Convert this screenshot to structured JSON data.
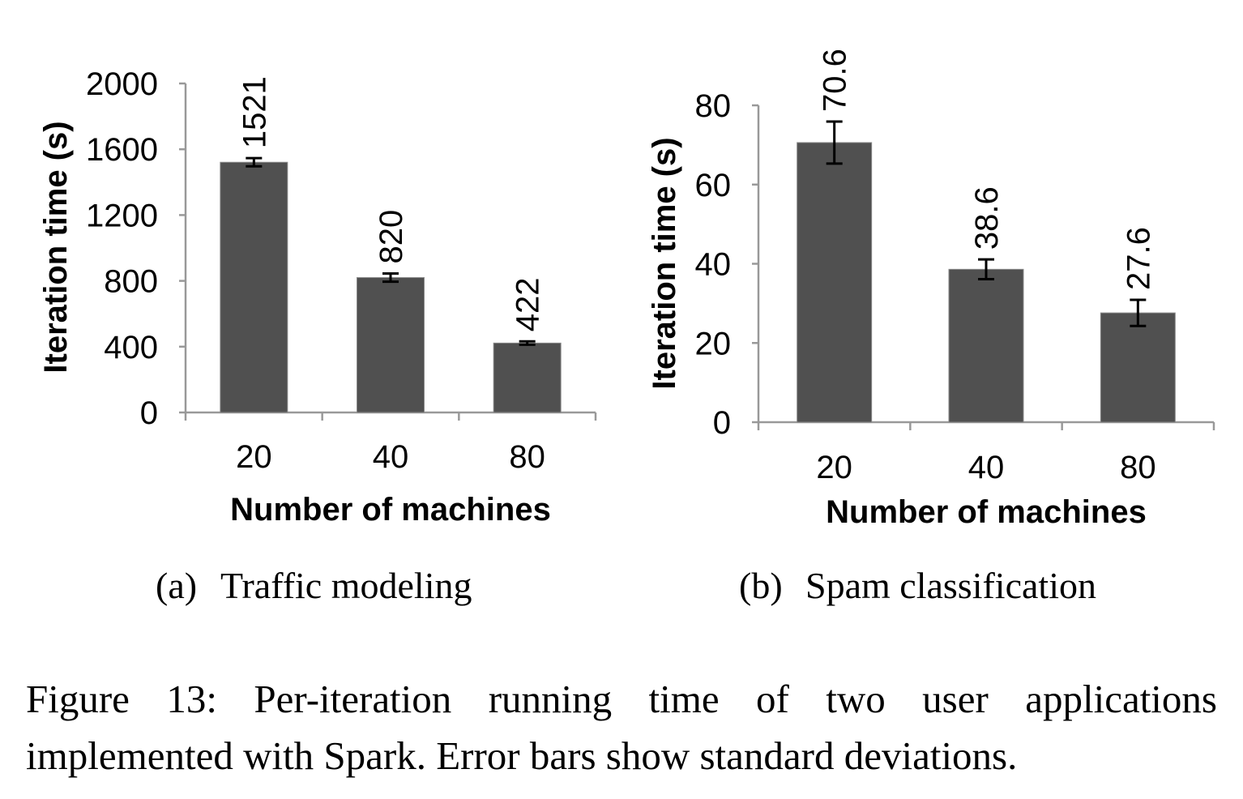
{
  "chart_data": [
    {
      "type": "bar",
      "subcaption_label": "(a)",
      "subcaption": "Traffic modeling",
      "xlabel": "Number of machines",
      "ylabel": "Iteration time (s)",
      "categories": [
        "20",
        "40",
        "80"
      ],
      "values": [
        1521,
        820,
        422
      ],
      "data_labels": [
        "1521",
        "820",
        "422"
      ],
      "error": [
        25,
        25,
        10
      ],
      "ylim": [
        0,
        2000
      ],
      "yticks": [
        "0",
        "400",
        "800",
        "1200",
        "1600",
        "2000"
      ],
      "grid": false,
      "bar_color": "#505050"
    },
    {
      "type": "bar",
      "subcaption_label": "(b)",
      "subcaption": "Spam classification",
      "xlabel": "Number of machines",
      "ylabel": "Iteration time (s)",
      "categories": [
        "20",
        "40",
        "80"
      ],
      "values": [
        70.6,
        38.6,
        27.6
      ],
      "data_labels": [
        "70.6",
        "38.6",
        "27.6"
      ],
      "error": [
        5.3,
        2.5,
        3.3
      ],
      "ylim": [
        0,
        80
      ],
      "yticks": [
        "0",
        "20",
        "40",
        "60",
        "80"
      ],
      "grid": false,
      "bar_color": "#505050"
    }
  ],
  "caption": "Figure 13: Per-iteration running time of two user applications implemented with Spark. Error bars show standard deviations."
}
